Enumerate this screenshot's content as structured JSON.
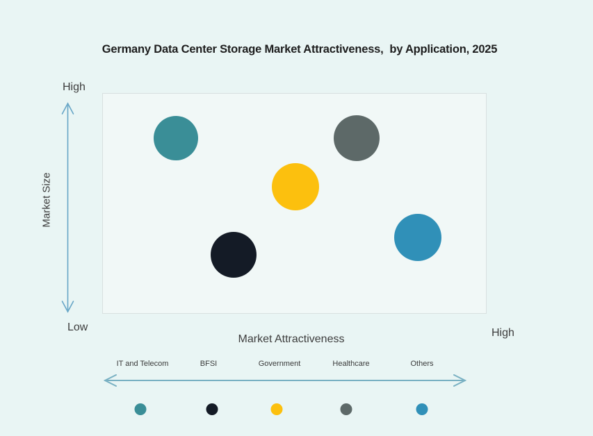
{
  "title": "Germany Data Center Storage Market Attractiveness,  by Application, 2025",
  "axes": {
    "y_label": "Market Size",
    "y_high": "High",
    "y_low": "Low",
    "x_label": "Market Attractiveness",
    "x_high": "High"
  },
  "colors": {
    "page_background": "#e9f5f4",
    "plot_background": "#f1f8f7",
    "plot_border": "#d8e0e0",
    "y_axis_arrow": "#66a5c6",
    "legend_arrow": "#78b0c2",
    "title_text": "#1d1d1d",
    "axis_text": "#3d3d3d"
  },
  "chart_data": {
    "type": "scatter",
    "subtype": "bubble-matrix",
    "title": "Germany Data Center Storage Market Attractiveness, by Application, 2025",
    "xlabel": "Market Attractiveness",
    "ylabel": "Market Size",
    "x_axis_scale": "qualitative, implicit low (left) to High (right), normalized 0-1 estimates",
    "y_axis_scale": "qualitative, Low (bottom) to High (top), normalized 0-1 estimates",
    "grid": false,
    "legend_position": "bottom",
    "points": [
      {
        "label": "IT and Telecom",
        "attractiveness": 0.19,
        "market_size": 0.8,
        "color": "#3a8e97",
        "radius_px": 32
      },
      {
        "label": "BFSI",
        "attractiveness": 0.34,
        "market_size": 0.27,
        "color": "#141b26",
        "radius_px": 33
      },
      {
        "label": "Government",
        "attractiveness": 0.5,
        "market_size": 0.58,
        "color": "#fcc00e",
        "radius_px": 34
      },
      {
        "label": "Healthcare",
        "attractiveness": 0.66,
        "market_size": 0.8,
        "color": "#5d6968",
        "radius_px": 33
      },
      {
        "label": "Others",
        "attractiveness": 0.82,
        "market_size": 0.35,
        "color": "#3090b8",
        "radius_px": 34
      }
    ]
  }
}
